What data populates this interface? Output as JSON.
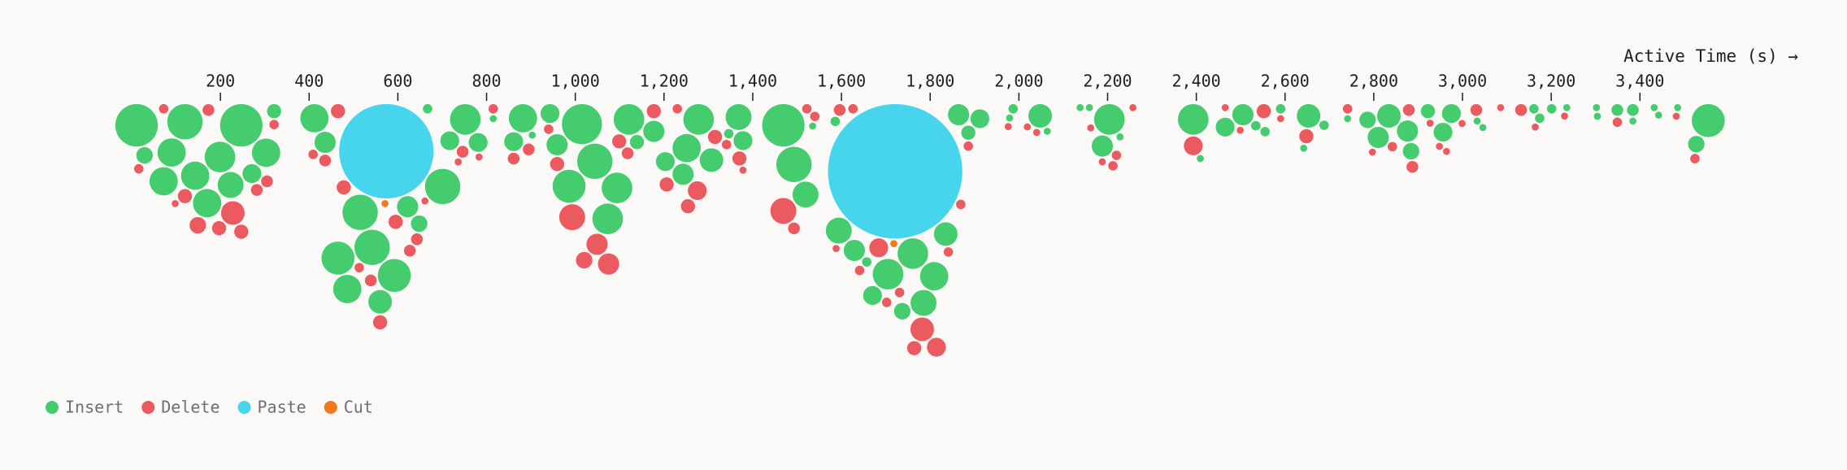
{
  "chart_data": {
    "type": "beeswarm",
    "x_label": "Active Time (s) →",
    "xlim": [
      0,
      3700
    ],
    "xticks": [
      200,
      400,
      600,
      800,
      {
        "value": 1000,
        "label": "1,000"
      },
      {
        "value": 1200,
        "label": "1,200"
      },
      {
        "value": 1400,
        "label": "1,400"
      },
      {
        "value": 1600,
        "label": "1,600"
      },
      {
        "value": 1800,
        "label": "1,800"
      },
      {
        "value": 2000,
        "label": "2,000"
      },
      {
        "value": 2200,
        "label": "2,200"
      },
      {
        "value": 2400,
        "label": "2,400"
      },
      {
        "value": 2600,
        "label": "2,600"
      },
      {
        "value": 2800,
        "label": "2,800"
      },
      {
        "value": 3000,
        "label": "3,000"
      },
      {
        "value": 3200,
        "label": "3,200"
      },
      {
        "value": 3400,
        "label": "3,400"
      }
    ],
    "legend": "bottom-left",
    "series": [
      {
        "name": "Insert",
        "color": "#45cc6e",
        "x": [
          11,
          29,
          90,
          120,
          247,
          321,
          199,
          303,
          72,
          143,
          223,
          271,
          170,
          412,
          436,
          667,
          701,
          648,
          515,
          592,
          465,
          542,
          622,
          486,
          560,
          752,
          815,
          717,
          781,
          882,
          861,
          903,
          943,
          1015,
          959,
          1044,
          986,
          1094,
          1073,
          1121,
          1139,
          1177,
          1278,
          1251,
          1243,
          1307,
          1203,
          1368,
          1378,
          1346,
          1469,
          1493,
          1519,
          1535,
          1586,
          1594,
          1629,
          1657,
          1761,
          1705,
          1809,
          1670,
          1785,
          1737,
          1835,
          1864,
          1912,
          1886,
          1987,
          1979,
          2048,
          2064,
          2138,
          2159,
          2204,
          2188,
          2228,
          2393,
          2409,
          2465,
          2505,
          2534,
          2555,
          2590,
          2653,
          2642,
          2688,
          2741,
          2786,
          2834,
          2810,
          2876,
          2884,
          2922,
          2975,
          2956,
          3033,
          3046,
          3161,
          3174,
          3201,
          3235,
          3302,
          3304,
          3349,
          3384,
          3384,
          3432,
          3442,
          3485,
          3554,
          3527
        ],
        "sizes": [
          324,
          49,
          144,
          225,
          324,
          36,
          169,
          144,
          144,
          144,
          121,
          64,
          144,
          144,
          81,
          16,
          225,
          49,
          225,
          196,
          196,
          225,
          81,
          144,
          100,
          169,
          9,
          64,
          64,
          144,
          64,
          9,
          64,
          289,
          81,
          225,
          196,
          169,
          169,
          169,
          36,
          81,
          169,
          144,
          81,
          100,
          64,
          121,
          64,
          16,
          324,
          225,
          121,
          9,
          16,
          121,
          81,
          16,
          169,
          169,
          144,
          64,
          121,
          49,
          100,
          81,
          64,
          36,
          16,
          9,
          100,
          9,
          9,
          9,
          169,
          81,
          9,
          169,
          9,
          64,
          81,
          16,
          16,
          16,
          100,
          9,
          16,
          9,
          49,
          100,
          81,
          81,
          49,
          36,
          64,
          64,
          9,
          9,
          16,
          16,
          16,
          9,
          9,
          9,
          25,
          25,
          9,
          9,
          9,
          9,
          196,
          49
        ]
      },
      {
        "name": "Delete",
        "color": "#eb5a5f",
        "x": [
          72,
          173,
          321,
          149,
          16,
          305,
          282,
          120,
          98,
          228,
          197,
          247,
          465,
          409,
          436,
          661,
          478,
          643,
          595,
          627,
          513,
          560,
          539,
          815,
          746,
          736,
          783,
          895,
          861,
          940,
          959,
          993,
          1049,
          1020,
          1075,
          1099,
          1118,
          1177,
          1206,
          1230,
          1315,
          1275,
          1254,
          1341,
          1370,
          1378,
          1469,
          1493,
          1522,
          1540,
          1596,
          1626,
          1588,
          1641,
          1684,
          1731,
          1702,
          1782,
          1764,
          1814,
          1841,
          1869,
          1886,
          1976,
          2019,
          2040,
          2162,
          2220,
          2212,
          2188,
          2257,
          2393,
          2465,
          2499,
          2552,
          2590,
          2648,
          2741,
          2797,
          2842,
          2879,
          2887,
          2927,
          2948,
          2964,
          2999,
          3031,
          3086,
          3132,
          3164,
          3230,
          3349,
          3482,
          3524
        ],
        "sizes": [
          16,
          25,
          16,
          49,
          16,
          25,
          25,
          36,
          9,
          100,
          36,
          36,
          36,
          16,
          25,
          9,
          36,
          25,
          36,
          25,
          16,
          36,
          25,
          16,
          25,
          9,
          9,
          25,
          25,
          16,
          36,
          121,
          81,
          49,
          81,
          36,
          25,
          36,
          36,
          16,
          36,
          64,
          36,
          16,
          36,
          9,
          121,
          25,
          16,
          16,
          25,
          16,
          9,
          16,
          64,
          16,
          16,
          100,
          36,
          64,
          16,
          16,
          16,
          9,
          9,
          9,
          9,
          16,
          16,
          9,
          9,
          64,
          9,
          9,
          36,
          9,
          36,
          16,
          9,
          16,
          25,
          25,
          9,
          9,
          9,
          9,
          25,
          9,
          25,
          9,
          9,
          16,
          9,
          16
        ]
      },
      {
        "name": "Paste",
        "color": "#47d5ee",
        "x": [
          574,
          1721
        ],
        "sizes": [
          1600,
          3249
        ]
      },
      {
        "name": "Cut",
        "color": "#f07a1a",
        "x": [
          571,
          1718
        ],
        "sizes": [
          9,
          9
        ]
      }
    ]
  }
}
